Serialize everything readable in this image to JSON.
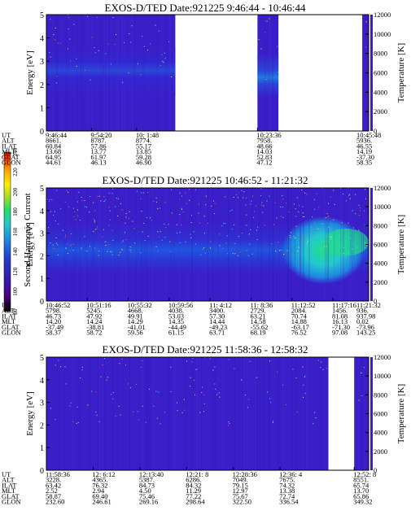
{
  "colorbar": {
    "label": "Second Harmonic Current",
    "ticks": [
      "80",
      "100",
      "120",
      "140",
      "160",
      "180",
      "200",
      "220",
      "240"
    ],
    "colors": [
      "#000000",
      "#4b0082",
      "#3020b0",
      "#1f3fd0",
      "#1e88e0",
      "#22c8c8",
      "#22dd66",
      "#aadd22",
      "#ffee00",
      "#ffaa00",
      "#ff5500",
      "#ee0000"
    ]
  },
  "chart_data": [
    {
      "type": "heatmap",
      "title": "EXOS-D/TED   Date:921225   9:46:44 - 10:46:44",
      "ylabel": "Energy [eV]",
      "y2label": "Temperature [K]",
      "ylim": [
        0,
        5
      ],
      "y2lim": [
        0,
        12000
      ],
      "yticks": [
        "0",
        "1",
        "2",
        "3",
        "4",
        "5"
      ],
      "y2ticks": [
        "0",
        "2000",
        "4000",
        "6000",
        "8000",
        "10000",
        "12000"
      ],
      "time_range": [
        "9:46:44",
        "10:46:44"
      ],
      "data_intervals_fraction": [
        [
          0.0,
          0.4
        ],
        [
          0.655,
          0.72
        ],
        [
          0.98,
          1.0
        ]
      ],
      "ephemeris_labels": [
        "UT",
        "ALT",
        "ILAT",
        "MLT",
        "GLAT",
        "GLON"
      ],
      "ephemeris": [
        {
          "pos": 0.0,
          "vals": [
            "9:46:44",
            "8661.",
            "60.84",
            "13.68",
            "64.95",
            "44.61"
          ]
        },
        {
          "pos": 0.14,
          "vals": [
            "9:54:20",
            "8787.",
            "57.86",
            "13.77",
            "61.97",
            "46.13"
          ]
        },
        {
          "pos": 0.28,
          "vals": [
            "10: 1:48",
            "8774.",
            "55.17",
            "13.85",
            "59.28",
            "46.90"
          ]
        },
        {
          "pos": 0.655,
          "vals": [
            "10:23:36",
            "7958.",
            "48.66",
            "14.03",
            "52.83",
            "47.12"
          ]
        },
        {
          "pos": 1.0,
          "vals": [
            "10:45:48",
            "5936.",
            "46.55",
            "14.19",
            "-37.30",
            "58.35"
          ]
        }
      ]
    },
    {
      "type": "heatmap",
      "title": "EXOS-D/TED   Date:921225   10:46:52 - 11:21:32",
      "ylabel": "Energy [eV]",
      "y2label": "Temperature [K]",
      "ylim": [
        0,
        5
      ],
      "y2lim": [
        0,
        12000
      ],
      "yticks": [
        "0",
        "1",
        "2",
        "3",
        "4",
        "5"
      ],
      "y2ticks": [
        "0",
        "2000",
        "4000",
        "6000",
        "8000",
        "10000",
        "12000"
      ],
      "time_range": [
        "10:46:52",
        "11:21:32"
      ],
      "data_intervals_fraction": [
        [
          0.0,
          1.0
        ]
      ],
      "ephemeris_labels": [
        "UT",
        "ALT",
        "ILAT",
        "MLT",
        "GLAT",
        "GLON"
      ],
      "ephemeris": [
        {
          "pos": 0.0,
          "vals": [
            "10:46:52",
            "5798.",
            "46.73",
            "14.20",
            "-37.49",
            "58.37"
          ]
        },
        {
          "pos": 0.127,
          "vals": [
            "10:51:16",
            "5245.",
            "47.92",
            "14.24",
            "-38.81",
            "58.72"
          ]
        },
        {
          "pos": 0.254,
          "vals": [
            "10:55:32",
            "4668.",
            "49.91",
            "14.29",
            "-41.01",
            "59.56"
          ]
        },
        {
          "pos": 0.381,
          "vals": [
            "10:59:56",
            "4038.",
            "53.03",
            "14.35",
            "-44.49",
            "61.15"
          ]
        },
        {
          "pos": 0.508,
          "vals": [
            "11: 4:12",
            "3400.",
            "57.30",
            "14.44",
            "-49.23",
            "63.71"
          ]
        },
        {
          "pos": 0.635,
          "vals": [
            "11: 8:36",
            "2729.",
            "63.21",
            "14.58",
            "-55.62",
            "68.19"
          ]
        },
        {
          "pos": 0.762,
          "vals": [
            "11:12:52",
            "2084.",
            "70.74",
            "14.88",
            "-63.17",
            "76.52"
          ]
        },
        {
          "pos": 0.889,
          "vals": [
            "11:17:16",
            "1456.",
            "81.08",
            "16.13",
            "-71.30",
            "97.08"
          ]
        },
        {
          "pos": 1.0,
          "vals": [
            "11:21:32",
            "936.",
            "937.98",
            "0.02",
            "-73.96",
            "143.25"
          ]
        }
      ]
    },
    {
      "type": "heatmap",
      "title": "EXOS-D/TED   Date:921225   11:58:36 - 12:58:32",
      "ylabel": "Energy [eV]",
      "y2label": "Temperature [K]",
      "ylim": [
        0,
        5
      ],
      "y2lim": [
        0,
        12000
      ],
      "yticks": [
        "0",
        "1",
        "2",
        "3",
        "4",
        "5"
      ],
      "y2ticks": [
        "0",
        "2000",
        "4000",
        "6000",
        "8000",
        "10000",
        "12000"
      ],
      "time_range": [
        "11:58:36",
        "12:58:32"
      ],
      "data_intervals_fraction": [
        [
          0.0,
          0.875
        ],
        [
          0.955,
          1.0
        ]
      ],
      "ephemeris_labels": [
        "UT",
        "ALT",
        "ILAT",
        "MLT",
        "GLAT",
        "GLON"
      ],
      "ephemeris": [
        {
          "pos": 0.0,
          "vals": [
            "11:58:36",
            "3228.",
            "63.42",
            "2.52",
            "58.87",
            "232.60"
          ]
        },
        {
          "pos": 0.145,
          "vals": [
            "12: 6:12",
            "4365.",
            "76.32",
            "2.94",
            "69.40",
            "246.61"
          ]
        },
        {
          "pos": 0.29,
          "vals": [
            "12:13:40",
            "5387.",
            "84.73",
            "4.50",
            "75.46",
            "269.16"
          ]
        },
        {
          "pos": 0.435,
          "vals": [
            "12:21: 8",
            "6286.",
            "84.32",
            "11.29",
            "77.22",
            "298.64"
          ]
        },
        {
          "pos": 0.58,
          "vals": [
            "12:28:36",
            "7049.",
            "79.15",
            "12.97",
            "75.67",
            "322.50"
          ]
        },
        {
          "pos": 0.725,
          "vals": [
            "12:36: 4",
            "7675.",
            "74.32",
            "13.38",
            "72.74",
            "336.54"
          ]
        },
        {
          "pos": 0.955,
          "vals": [
            "12:52: 8",
            "8551.",
            "65.74",
            "13.70",
            "65.86",
            "349.32"
          ]
        }
      ]
    }
  ]
}
